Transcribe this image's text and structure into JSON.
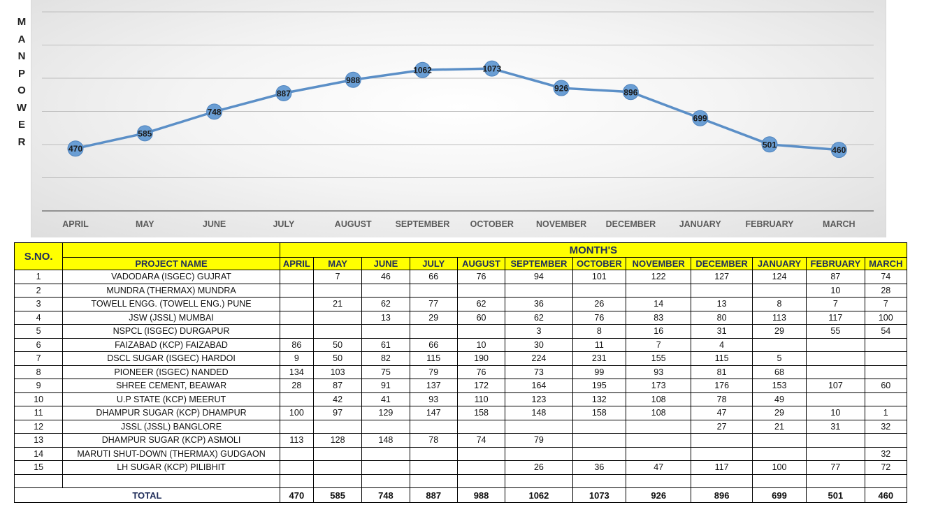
{
  "chart_data": {
    "type": "line",
    "ylabel": "MANPOWER",
    "categories": [
      "APRIL",
      "MAY",
      "JUNE",
      "JULY",
      "AUGUST",
      "SEPTEMBER",
      "OCTOBER",
      "NOVEMBER",
      "DECEMBER",
      "JANUARY",
      "FEBRUARY",
      "MARCH"
    ],
    "values": [
      470,
      585,
      748,
      887,
      988,
      1062,
      1073,
      926,
      896,
      699,
      501,
      460
    ],
    "ylim": [
      0,
      1500
    ],
    "grid": true,
    "colors": {
      "line": "#5b8fc7",
      "marker": "#6a9ed4",
      "grid": "#bdbdbd"
    }
  },
  "table": {
    "sno_header": "S.NO.",
    "months_header": "MONTH'S",
    "project_header": "PROJECT NAME",
    "month_columns": [
      "APRIL",
      "MAY",
      "JUNE",
      "JULY",
      "AUGUST",
      "SEPTEMBER",
      "OCTOBER",
      "NOVEMBER",
      "DECEMBER",
      "JANUARY",
      "FEBRUARY",
      "MARCH"
    ],
    "rows": [
      {
        "sno": "1",
        "name": "VADODARA (ISGEC) GUJRAT",
        "values": [
          "",
          "7",
          "46",
          "66",
          "76",
          "94",
          "101",
          "122",
          "127",
          "124",
          "87",
          "74"
        ]
      },
      {
        "sno": "2",
        "name": "MUNDRA (THERMAX) MUNDRA",
        "values": [
          "",
          "",
          "",
          "",
          "",
          "",
          "",
          "",
          "",
          "",
          "10",
          "28"
        ]
      },
      {
        "sno": "3",
        "name": "TOWELL ENGG. (TOWELL ENG.) PUNE",
        "values": [
          "",
          "21",
          "62",
          "77",
          "62",
          "36",
          "26",
          "14",
          "13",
          "8",
          "7",
          "7"
        ]
      },
      {
        "sno": "4",
        "name": "JSW (JSSL) MUMBAI",
        "values": [
          "",
          "",
          "13",
          "29",
          "60",
          "62",
          "76",
          "83",
          "80",
          "113",
          "117",
          "100"
        ]
      },
      {
        "sno": "5",
        "name": "NSPCL (ISGEC) DURGAPUR",
        "values": [
          "",
          "",
          "",
          "",
          "",
          "3",
          "8",
          "16",
          "31",
          "29",
          "55",
          "54"
        ]
      },
      {
        "sno": "6",
        "name": "FAIZABAD (KCP) FAIZABAD",
        "values": [
          "86",
          "50",
          "61",
          "66",
          "10",
          "30",
          "11",
          "7",
          "4",
          "",
          "",
          ""
        ]
      },
      {
        "sno": "7",
        "name": "DSCL SUGAR (ISGEC) HARDOI",
        "values": [
          "9",
          "50",
          "82",
          "115",
          "190",
          "224",
          "231",
          "155",
          "115",
          "5",
          "",
          ""
        ]
      },
      {
        "sno": "8",
        "name": "PIONEER (ISGEC) NANDED",
        "values": [
          "134",
          "103",
          "75",
          "79",
          "76",
          "73",
          "99",
          "93",
          "81",
          "68",
          "",
          ""
        ]
      },
      {
        "sno": "9",
        "name": "SHREE CEMENT, BEAWAR",
        "values": [
          "28",
          "87",
          "91",
          "137",
          "172",
          "164",
          "195",
          "173",
          "176",
          "153",
          "107",
          "60"
        ]
      },
      {
        "sno": "10",
        "name": "U.P STATE (KCP) MEERUT",
        "values": [
          "",
          "42",
          "41",
          "93",
          "110",
          "123",
          "132",
          "108",
          "78",
          "49",
          "",
          ""
        ]
      },
      {
        "sno": "11",
        "name": "DHAMPUR SUGAR  (KCP) DHAMPUR",
        "values": [
          "100",
          "97",
          "129",
          "147",
          "158",
          "148",
          "158",
          "108",
          "47",
          "29",
          "10",
          "1"
        ]
      },
      {
        "sno": "12",
        "name": "JSSL (JSSL) BANGLORE",
        "values": [
          "",
          "",
          "",
          "",
          "",
          "",
          "",
          "",
          "27",
          "21",
          "31",
          "32"
        ]
      },
      {
        "sno": "13",
        "name": "DHAMPUR SUGAR (KCP) ASMOLI",
        "values": [
          "113",
          "128",
          "148",
          "78",
          "74",
          "79",
          "",
          "",
          "",
          "",
          "",
          ""
        ]
      },
      {
        "sno": "14",
        "name": "MARUTI SHUT-DOWN (THERMAX) GUDGAON",
        "values": [
          "",
          "",
          "",
          "",
          "",
          "",
          "",
          "",
          "",
          "",
          "",
          "32"
        ]
      },
      {
        "sno": "15",
        "name": "LH SUGAR (KCP) PILIBHIT",
        "values": [
          "",
          "",
          "",
          "",
          "",
          "26",
          "36",
          "47",
          "117",
          "100",
          "77",
          "72"
        ]
      },
      {
        "sno": "",
        "name": "",
        "values": [
          "",
          "",
          "",
          "",
          "",
          "",
          "",
          "",
          "",
          "",
          "",
          ""
        ]
      }
    ],
    "total_label": "TOTAL",
    "totals": [
      "470",
      "585",
      "748",
      "887",
      "988",
      "1062",
      "1073",
      "926",
      "896",
      "699",
      "501",
      "460"
    ],
    "header_color": "#ffff00"
  }
}
